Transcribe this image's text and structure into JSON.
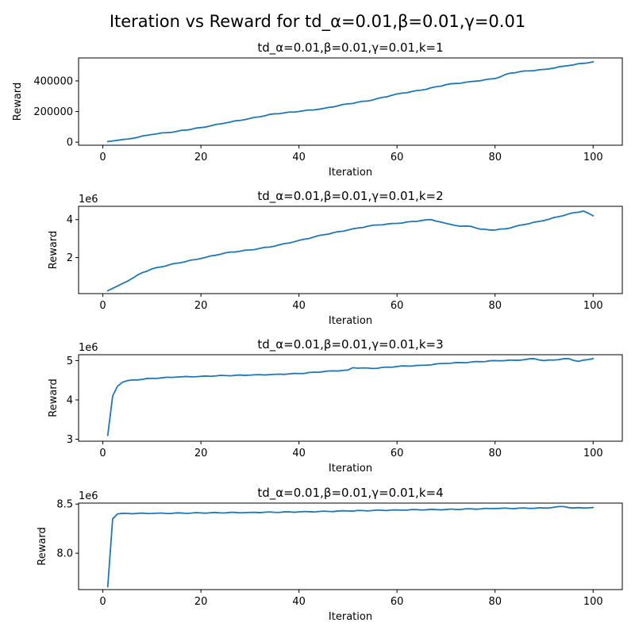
{
  "figure": {
    "title": "Iteration vs Reward for td_α=0.01,β=0.01,γ=0.01",
    "line_color": "#1f77b4"
  },
  "chart_data": [
    {
      "type": "line",
      "title": "td_α=0.01,β=0.01,γ=0.01,k=1",
      "xlabel": "Iteration",
      "ylabel": "Reward",
      "xlim": [
        -4.95,
        105.95
      ],
      "ylim": [
        -20000,
        550000
      ],
      "xticks": [
        0,
        20,
        40,
        60,
        80,
        100
      ],
      "xtick_labels": [
        "0",
        "20",
        "40",
        "60",
        "80",
        "100"
      ],
      "yticks": [
        0,
        200000,
        400000
      ],
      "ytick_labels": [
        "0",
        "200000",
        "400000"
      ],
      "offset_text": "",
      "grid": false,
      "series": [
        {
          "anchors": [
            [
              1,
              4000
            ],
            [
              5,
              20000
            ],
            [
              10,
              50000
            ],
            [
              15,
              70000
            ],
            [
              20,
              95000
            ],
            [
              25,
              125000
            ],
            [
              30,
              155000
            ],
            [
              35,
              185000
            ],
            [
              40,
              200000
            ],
            [
              45,
              220000
            ],
            [
              50,
              250000
            ],
            [
              55,
              275000
            ],
            [
              60,
              315000
            ],
            [
              65,
              340000
            ],
            [
              70,
              375000
            ],
            [
              75,
              395000
            ],
            [
              80,
              415000
            ],
            [
              83,
              450000
            ],
            [
              85,
              460000
            ],
            [
              90,
              475000
            ],
            [
              95,
              500000
            ],
            [
              100,
              525000
            ]
          ],
          "values": []
        }
      ]
    },
    {
      "type": "line",
      "title": "td_α=0.01,β=0.01,γ=0.01,k=2",
      "xlabel": "Iteration",
      "ylabel": "Reward",
      "xlim": [
        -4.95,
        105.95
      ],
      "ylim": [
        100000,
        4700000
      ],
      "xticks": [
        0,
        20,
        40,
        60,
        80,
        100
      ],
      "xtick_labels": [
        "0",
        "20",
        "40",
        "60",
        "80",
        "100"
      ],
      "yticks": [
        2000000,
        4000000
      ],
      "ytick_labels": [
        "2",
        "4"
      ],
      "offset_text": "1e6",
      "grid": false,
      "series": [
        {
          "anchors": [
            [
              1,
              250000
            ],
            [
              5,
              750000
            ],
            [
              8,
              1200000
            ],
            [
              10,
              1400000
            ],
            [
              15,
              1700000
            ],
            [
              20,
              1950000
            ],
            [
              25,
              2250000
            ],
            [
              30,
              2400000
            ],
            [
              35,
              2600000
            ],
            [
              40,
              2900000
            ],
            [
              45,
              3200000
            ],
            [
              50,
              3450000
            ],
            [
              55,
              3700000
            ],
            [
              60,
              3800000
            ],
            [
              65,
              3950000
            ],
            [
              67,
              4000000
            ],
            [
              70,
              3800000
            ],
            [
              73,
              3650000
            ],
            [
              75,
              3650000
            ],
            [
              77,
              3500000
            ],
            [
              80,
              3450000
            ],
            [
              83,
              3550000
            ],
            [
              85,
              3700000
            ],
            [
              90,
              3950000
            ],
            [
              95,
              4300000
            ],
            [
              98,
              4450000
            ],
            [
              100,
              4200000
            ]
          ],
          "values": []
        }
      ]
    },
    {
      "type": "line",
      "title": "td_α=0.01,β=0.01,γ=0.01,k=3",
      "xlabel": "Iteration",
      "ylabel": "Reward",
      "xlim": [
        -4.95,
        105.95
      ],
      "ylim": [
        2950000,
        5150000
      ],
      "xticks": [
        0,
        20,
        40,
        60,
        80,
        100
      ],
      "xtick_labels": [
        "0",
        "20",
        "40",
        "60",
        "80",
        "100"
      ],
      "yticks": [
        3000000,
        4000000,
        5000000
      ],
      "ytick_labels": [
        "3",
        "4",
        "5"
      ],
      "offset_text": "1e6",
      "grid": false,
      "series": [
        {
          "anchors": [
            [
              1,
              3100000
            ],
            [
              2,
              4100000
            ],
            [
              3,
              4350000
            ],
            [
              4,
              4450000
            ],
            [
              5,
              4490000
            ],
            [
              10,
              4550000
            ],
            [
              15,
              4580000
            ],
            [
              20,
              4600000
            ],
            [
              25,
              4620000
            ],
            [
              30,
              4630000
            ],
            [
              35,
              4650000
            ],
            [
              40,
              4670000
            ],
            [
              45,
              4720000
            ],
            [
              50,
              4760000
            ],
            [
              51,
              4820000
            ],
            [
              55,
              4800000
            ],
            [
              60,
              4850000
            ],
            [
              65,
              4880000
            ],
            [
              70,
              4930000
            ],
            [
              75,
              4960000
            ],
            [
              80,
              5000000
            ],
            [
              85,
              5010000
            ],
            [
              88,
              5050000
            ],
            [
              90,
              5000000
            ],
            [
              95,
              5050000
            ],
            [
              97,
              4980000
            ],
            [
              100,
              5050000
            ]
          ],
          "values": []
        }
      ]
    },
    {
      "type": "line",
      "title": "td_α=0.01,β=0.01,γ=0.01,k=4",
      "xlabel": "Iteration",
      "ylabel": "Reward",
      "xlim": [
        -4.95,
        105.95
      ],
      "ylim": [
        7630000,
        8510000
      ],
      "xticks": [
        0,
        20,
        40,
        60,
        80,
        100
      ],
      "xtick_labels": [
        "0",
        "20",
        "40",
        "60",
        "80",
        "100"
      ],
      "yticks": [
        8000000,
        8500000
      ],
      "ytick_labels": [
        "8.0",
        "8.5"
      ],
      "offset_text": "1e6",
      "grid": false,
      "series": [
        {
          "anchors": [
            [
              1,
              7660000
            ],
            [
              2,
              8350000
            ],
            [
              3,
              8400000
            ],
            [
              5,
              8405000
            ],
            [
              10,
              8405000
            ],
            [
              20,
              8410000
            ],
            [
              30,
              8415000
            ],
            [
              40,
              8420000
            ],
            [
              50,
              8430000
            ],
            [
              60,
              8440000
            ],
            [
              70,
              8445000
            ],
            [
              80,
              8455000
            ],
            [
              90,
              8460000
            ],
            [
              94,
              8475000
            ],
            [
              96,
              8460000
            ],
            [
              100,
              8465000
            ]
          ],
          "values": []
        }
      ]
    }
  ]
}
